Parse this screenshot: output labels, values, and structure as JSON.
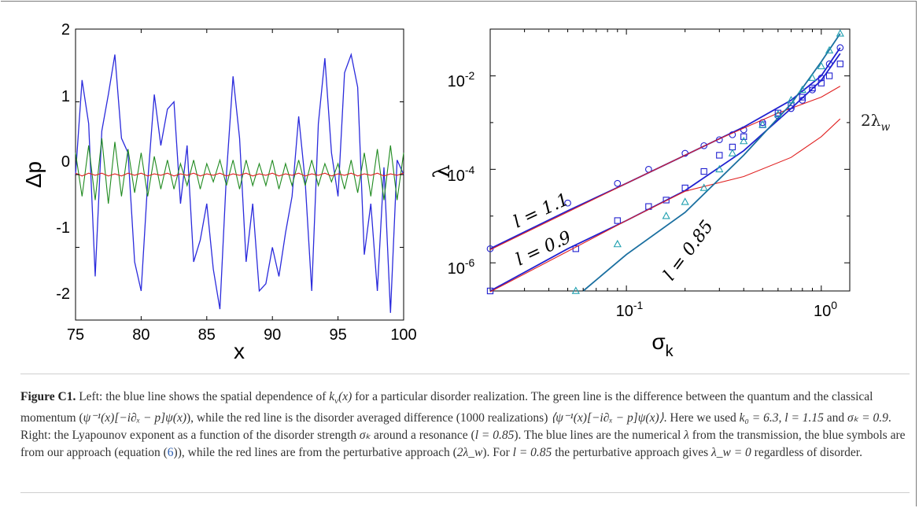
{
  "figure": {
    "label": "Figure C1.",
    "caption": {
      "p1": "Left: the blue line shows the spatial dependence of ",
      "m1": "k",
      "m1sub": "v",
      "m1b": "(x)",
      "p2": " for a particular disorder realization. The green line is the difference between the quantum and the classical momentum (",
      "m2": "ψ⁻¹(x)[−i∂ₓ − p]ψ(x)",
      "p3": "), while the red line is the disorder averaged difference (1000 realizations) ",
      "m3": "⟨ψ⁻¹(x)[−i∂ₓ − p]ψ(x)⟩",
      "p4": ". Here we used ",
      "m4": "k₀ = 6.3, l = 1.15",
      "p5": " and ",
      "m5": "σₖ = 0.9",
      "p6": ". Right: the Lyapounov exponent as a function of the disorder strength ",
      "m6": "σₖ",
      "p7": " around a resonance (",
      "m7": "l = 0.85",
      "p8": "). The blue lines are the numerical ",
      "m8": "λ",
      "p9": " from the transmission, the blue symbols are from our approach (equation (",
      "ref": "6",
      "p10": ")), while the red lines are from the perturbative approach (",
      "m9": "2λ_w",
      "p11": "). For ",
      "m10": "l = 0.85",
      "p12": " the perturbative approach gives ",
      "m11": "λ_w = 0",
      "p13": " regardless of disorder."
    }
  },
  "left_plot": {
    "xlabel": "x",
    "ylabel": "Δp",
    "xticks": [
      "75",
      "80",
      "85",
      "90",
      "95",
      "100"
    ],
    "yticks": [
      "2",
      "1",
      "0",
      "-1",
      "-2"
    ]
  },
  "right_plot": {
    "xlabel": "σ",
    "xlabel_sub": "k",
    "ylabel": "λ",
    "xticks": [
      "10",
      "10"
    ],
    "xtick_exp": [
      "-1",
      "0"
    ],
    "yticks": [
      "10",
      "10",
      "10"
    ],
    "ytick_exp": [
      "-2",
      "-4",
      "-6"
    ],
    "labels": {
      "l11": "l = 1.1",
      "l09": "l = 0.9",
      "l085": "l = 0.85",
      "lw": "2λ",
      "lw_sub": "w"
    }
  },
  "chart_data": [
    {
      "type": "line",
      "title": "",
      "xlabel": "x",
      "ylabel": "Δp",
      "xlim": [
        75,
        100
      ],
      "ylim": [
        -2,
        2
      ],
      "grid": false,
      "x": [
        75,
        75.5,
        76,
        76.5,
        77,
        77.5,
        78,
        78.5,
        79,
        79.5,
        80,
        80.5,
        81,
        81.5,
        82,
        82.5,
        83,
        83.5,
        84,
        84.5,
        85,
        85.5,
        86,
        86.5,
        87,
        87.5,
        88,
        88.5,
        89,
        89.5,
        90,
        90.5,
        91,
        91.5,
        92,
        92.5,
        93,
        93.5,
        94,
        94.5,
        95,
        95.5,
        96,
        96.5,
        97,
        97.5,
        98,
        98.5,
        99,
        99.5,
        100
      ],
      "series": [
        {
          "name": "",
          "color": "#2b2bdc",
          "values": [
            0.0,
            1.3,
            0.7,
            -1.4,
            0.6,
            1.1,
            1.65,
            0.5,
            0.3,
            -1.2,
            -1.6,
            -0.1,
            1.1,
            0.4,
            0.9,
            1.0,
            -0.4,
            0.4,
            -1.2,
            -0.9,
            -0.4,
            -1.3,
            -1.85,
            0.0,
            1.35,
            0.5,
            -1.2,
            -0.4,
            -1.6,
            -1.5,
            -1.0,
            -1.4,
            -0.8,
            -0.3,
            0.8,
            -0.1,
            -1.6,
            0.7,
            1.6,
            0.3,
            -0.3,
            1.4,
            1.65,
            1.2,
            -1.1,
            -0.4,
            -1.6,
            0.1,
            -1.9,
            0.2,
            0.0
          ]
        },
        {
          "name": "",
          "color": "#1f8a1f",
          "values": [
            0.3,
            -0.3,
            0.4,
            -0.35,
            0.5,
            -0.4,
            0.45,
            -0.3,
            0.35,
            -0.25,
            0.3,
            -0.3,
            0.25,
            -0.2,
            0.2,
            -0.2,
            0.15,
            -0.15,
            0.2,
            -0.2,
            0.15,
            -0.1,
            0.2,
            -0.15,
            0.2,
            -0.2,
            0.2,
            -0.15,
            0.15,
            -0.15,
            0.2,
            -0.2,
            0.15,
            -0.15,
            0.2,
            -0.15,
            0.2,
            -0.15,
            0.15,
            -0.1,
            0.15,
            -0.2,
            0.2,
            -0.25,
            0.3,
            -0.3,
            0.35,
            -0.35,
            0.4,
            -0.35,
            0.3
          ]
        },
        {
          "name": "",
          "color": "#e02020",
          "values": [
            0.02,
            -0.02,
            0.02,
            -0.01,
            0.02,
            -0.02,
            0.01,
            -0.02,
            0.02,
            -0.01,
            0.02,
            -0.02,
            0.01,
            -0.01,
            0.02,
            -0.02,
            0.01,
            -0.01,
            0.02,
            -0.02,
            0.01,
            -0.01,
            0.02,
            -0.02,
            0.01,
            -0.01,
            0.02,
            -0.02,
            0.01,
            -0.01,
            0.02,
            -0.02,
            0.01,
            -0.01,
            0.02,
            -0.02,
            0.01,
            -0.01,
            0.02,
            -0.02,
            0.01,
            -0.01,
            0.02,
            -0.02,
            0.01,
            -0.01,
            0.02,
            -0.02,
            0.01,
            -0.01,
            0.02
          ]
        }
      ]
    },
    {
      "type": "line",
      "title": "",
      "xlabel": "σ_k",
      "ylabel": "λ",
      "xscale": "log",
      "yscale": "log",
      "xlim": [
        0.02,
        1.4
      ],
      "ylim": [
        2.5e-07,
        0.1
      ],
      "grid": false,
      "series": [
        {
          "name": "",
          "color": "#2020d0",
          "style": "line",
          "x": [
            0.02,
            0.05,
            0.1,
            0.2,
            0.4,
            0.7,
            1.0,
            1.25
          ],
          "y": [
            2e-06,
            1.3e-05,
            5e-05,
            0.0002,
            0.0008,
            0.003,
            0.01,
            0.04
          ]
        },
        {
          "name": "",
          "color": "#2020d0",
          "style": "circles",
          "x": [
            0.02,
            0.05,
            0.09,
            0.13,
            0.2,
            0.25,
            0.3,
            0.35,
            0.4,
            0.5,
            0.6,
            0.7,
            0.8,
            0.9,
            1.0,
            1.1,
            1.25
          ],
          "y": [
            2e-06,
            1.9e-05,
            5e-05,
            0.0001,
            0.00022,
            0.00032,
            0.00043,
            0.00055,
            0.0007,
            0.001,
            0.0014,
            0.002,
            0.003,
            0.005,
            0.009,
            0.018,
            0.04
          ]
        },
        {
          "name": "",
          "color": "#e02020",
          "style": "line",
          "x": [
            0.02,
            0.1,
            0.3,
            0.6,
            1.0,
            1.25
          ],
          "y": [
            1.9e-06,
            5e-05,
            0.00045,
            0.0016,
            0.0035,
            0.006
          ]
        },
        {
          "name": "",
          "color": "#2020d0",
          "style": "line",
          "x": [
            0.02,
            0.05,
            0.1,
            0.2,
            0.4,
            0.7,
            1.0,
            1.25
          ],
          "y": [
            2.5e-07,
            2e-06,
            8e-06,
            3.5e-05,
            0.00025,
            0.002,
            0.008,
            0.03
          ]
        },
        {
          "name": "",
          "color": "#2020d0",
          "style": "squares",
          "x": [
            0.02,
            0.055,
            0.09,
            0.13,
            0.16,
            0.2,
            0.25,
            0.3,
            0.35,
            0.4,
            0.5,
            0.6,
            0.7,
            0.8,
            0.9,
            1.0,
            1.1,
            1.25
          ],
          "y": [
            2.5e-07,
            2e-06,
            8e-06,
            1.6e-05,
            2.2e-05,
            4e-05,
            9e-05,
            0.0002,
            0.0003,
            0.0005,
            0.0009,
            0.0016,
            0.0023,
            0.0035,
            0.0055,
            0.007,
            0.01,
            0.018
          ]
        },
        {
          "name": "",
          "color": "#e02020",
          "style": "line",
          "x": [
            0.02,
            0.1,
            0.2,
            0.4,
            0.7,
            1.0,
            1.25
          ],
          "y": [
            2.4e-07,
            8e-06,
            3.4e-05,
            7e-05,
            0.00018,
            0.0005,
            0.0012
          ]
        },
        {
          "name": "",
          "color": "#1a6fa0",
          "style": "line",
          "x": [
            0.06,
            0.1,
            0.2,
            0.4,
            0.7,
            1.0,
            1.25
          ],
          "y": [
            2.5e-07,
            1.5e-06,
            1.2e-05,
            0.0002,
            0.0025,
            0.02,
            0.08
          ]
        },
        {
          "name": "",
          "color": "#20a0b0",
          "style": "triangles",
          "x": [
            0.055,
            0.09,
            0.16,
            0.2,
            0.25,
            0.3,
            0.35,
            0.4,
            0.5,
            0.6,
            0.7,
            0.8,
            0.9,
            1.0,
            1.1,
            1.25
          ],
          "y": [
            2.5e-07,
            2.5e-06,
            1e-05,
            2e-05,
            4e-05,
            0.0001,
            0.00022,
            0.0004,
            0.0009,
            0.0015,
            0.003,
            0.005,
            0.009,
            0.016,
            0.035,
            0.08
          ]
        }
      ]
    }
  ]
}
